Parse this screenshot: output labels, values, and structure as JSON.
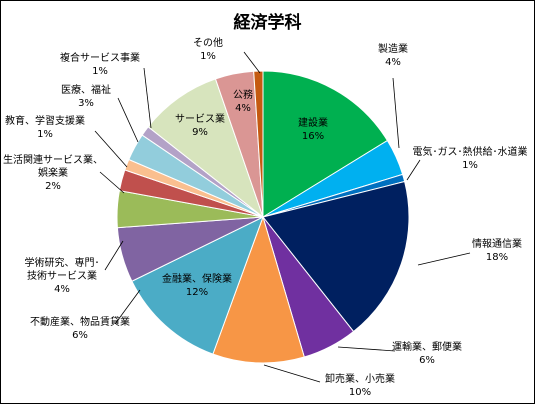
{
  "chart_data": {
    "type": "pie",
    "title": "経済学科",
    "slices": [
      {
        "name": "建設業",
        "percent_label": "16%",
        "value": 16,
        "color": "#00B050"
      },
      {
        "name": "製造業",
        "percent_label": "4%",
        "value": 4,
        "color": "#00B0F0"
      },
      {
        "name": "電気･ガス･熱供給･水道業",
        "percent_label": "1%",
        "value": 0.8,
        "color": "#0070C0"
      },
      {
        "name": "情報通信業",
        "percent_label": "18%",
        "value": 18,
        "color": "#002060"
      },
      {
        "name": "運輸業、郵便業",
        "percent_label": "6%",
        "value": 6,
        "color": "#7030A0"
      },
      {
        "name": "卸売業、小売業",
        "percent_label": "10%",
        "value": 10,
        "color": "#F79646"
      },
      {
        "name": "金融業、保険業",
        "percent_label": "12%",
        "value": 12,
        "color": "#4BACC6"
      },
      {
        "name": "不動産業、物品賃貸業",
        "percent_label": "6%",
        "value": 6,
        "color": "#8064A2"
      },
      {
        "name": "学術研究、専門・技術サービス業",
        "percent_label": "4%",
        "value": 4,
        "color": "#9BBB59"
      },
      {
        "name": "生活関連サービス業、娯楽業",
        "percent_label": "2%",
        "value": 2.3,
        "color": "#C0504D"
      },
      {
        "name": "教育、学習支援業",
        "percent_label": "1%",
        "value": 1.2,
        "color": "#FABF8F"
      },
      {
        "name": "医療、福祉",
        "percent_label": "3%",
        "value": 3,
        "color": "#92CDDC"
      },
      {
        "name": "複合サービス事業",
        "percent_label": "1%",
        "value": 1.1,
        "color": "#B3A2C7"
      },
      {
        "name": "サービス業",
        "percent_label": "9%",
        "value": 9,
        "color": "#D7E4BD"
      },
      {
        "name": "公務",
        "percent_label": "4%",
        "value": 4.2,
        "color": "#DA9694"
      },
      {
        "name": "その他",
        "percent_label": "1%",
        "value": 1,
        "color": "#C55A11"
      }
    ]
  }
}
